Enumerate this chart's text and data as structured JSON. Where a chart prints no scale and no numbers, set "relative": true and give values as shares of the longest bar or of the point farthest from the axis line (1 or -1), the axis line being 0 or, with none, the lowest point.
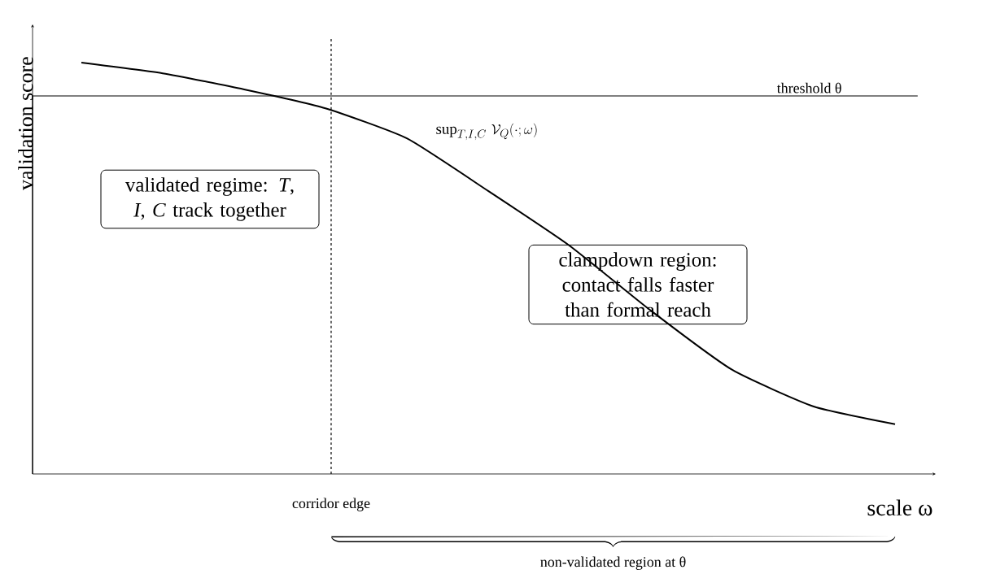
{
  "chart_data": {
    "type": "line",
    "relative": true,
    "xlabel": "scale ω",
    "ylabel": "validation score",
    "categories": [
      null,
      null,
      null,
      null,
      null,
      null,
      null,
      null,
      null,
      null,
      null
    ],
    "series": [
      {
        "color": "#000000",
        "values": [
          1,
          0.974,
          0.935,
          0.889,
          0.816,
          0.688,
          0.555,
          0.397,
          0.253,
          0.164,
          0.121
        ]
      }
    ],
    "line_style": "solid",
    "ref_lines": [
      {
        "axis": "y",
        "value": 0.919,
        "label": "threshold θ",
        "color": "#000000",
        "line_style": "solid"
      }
    ],
    "annotations": [
      "\\sup_{T,I,C}\\,\\mathcal{V}_{Q}(\\cdot;\\omega)",
      "validated regime: *T*, *I*, *C* track together",
      "clampdown region: contact falls faster than formal reach",
      "corridor edge",
      "non-validated region at θ"
    ]
  }
}
